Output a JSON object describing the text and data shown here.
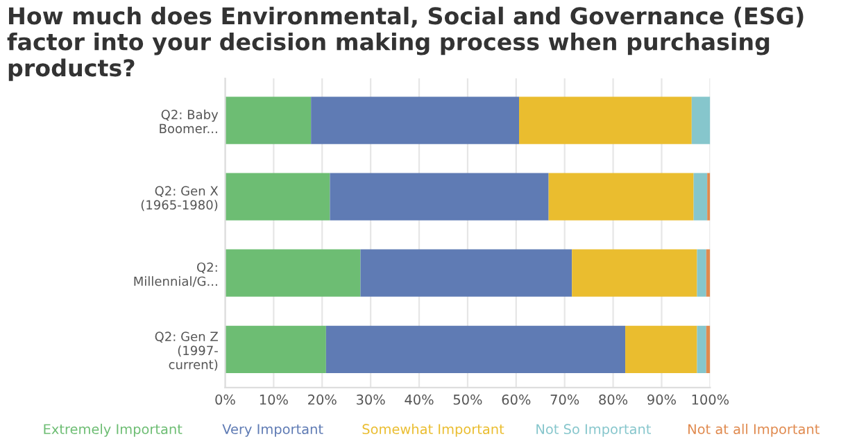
{
  "chart_data": {
    "type": "bar",
    "orientation": "horizontal",
    "stacked": true,
    "title": "How much does Environmental, Social and Governance (ESG) factor into your decision making process when purchasing products?",
    "categories": [
      "Q2: Baby\nBoomer...",
      "Q2: Gen X\n(1965-1980)",
      "Q2:\nMillennial/G...",
      "Q2: Gen Z\n(1997-\ncurrent)"
    ],
    "series": [
      {
        "name": "Extremely Important",
        "color": "#6dbd73",
        "values": [
          17.7,
          21.6,
          27.9,
          20.8
        ]
      },
      {
        "name": "Very Important",
        "color": "#5f7bb4",
        "values": [
          42.9,
          45.1,
          43.6,
          61.7
        ]
      },
      {
        "name": "Somewhat Important",
        "color": "#eabd2f",
        "values": [
          35.6,
          29.9,
          25.8,
          14.8
        ]
      },
      {
        "name": "Not So Important",
        "color": "#86c6cc",
        "values": [
          3.8,
          2.8,
          1.9,
          1.9
        ]
      },
      {
        "name": "Not at all Important",
        "color": "#e08a4f",
        "values": [
          0,
          0.6,
          0.8,
          0.8
        ]
      }
    ],
    "xlim": [
      0,
      100
    ],
    "xticks": [
      {
        "value": 0,
        "label": "0%"
      },
      {
        "value": 10,
        "label": "10%"
      },
      {
        "value": 20,
        "label": "20%"
      },
      {
        "value": 30,
        "label": "30%"
      },
      {
        "value": 40,
        "label": "40%"
      },
      {
        "value": 50,
        "label": "50%"
      },
      {
        "value": 60,
        "label": "60%"
      },
      {
        "value": 70,
        "label": "70%"
      },
      {
        "value": 80,
        "label": "80%"
      },
      {
        "value": 90,
        "label": "90%"
      },
      {
        "value": 100,
        "label": "100%"
      }
    ],
    "grid": "x",
    "legend": "bottom"
  }
}
